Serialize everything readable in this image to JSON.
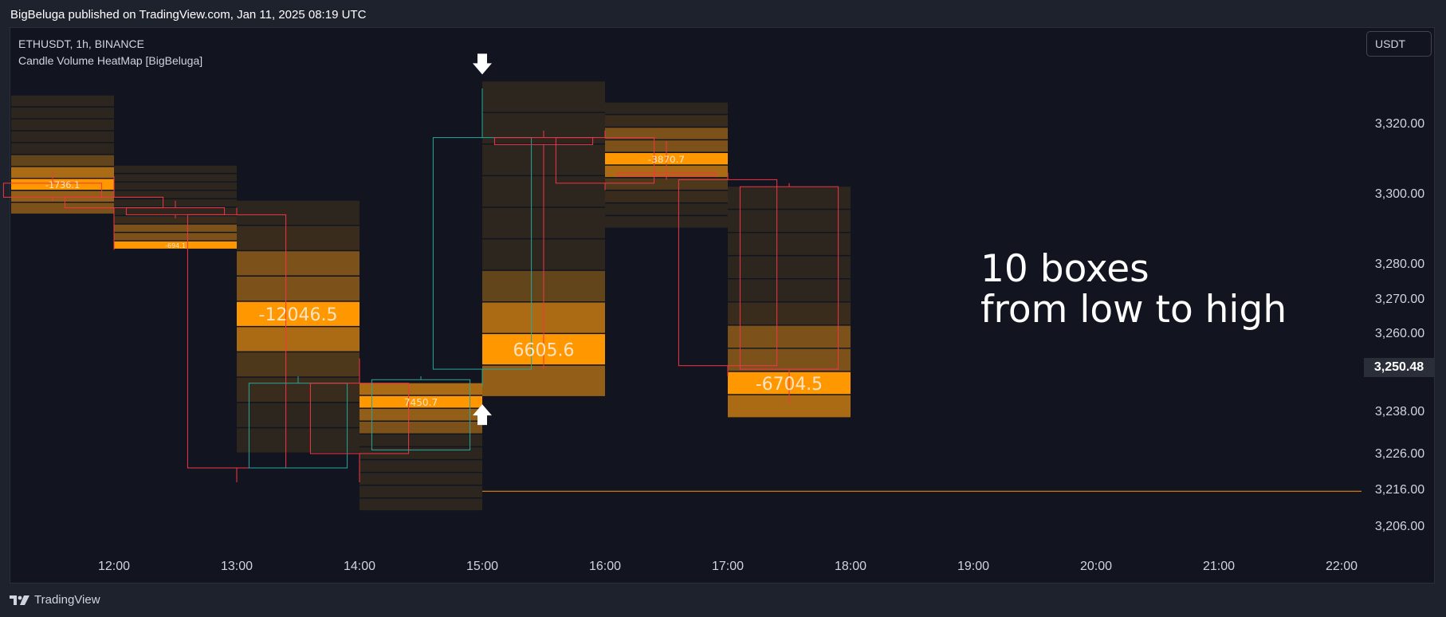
{
  "header": {
    "published": "BigBeluga published on TradingView.com, Jan 11, 2025 08:19 UTC"
  },
  "legend": {
    "symbol_line": "ETHUSDT, 1h, BINANCE",
    "indicator_line": "Candle Volume HeatMap [BigBeluga]"
  },
  "currency_button": "USDT",
  "annotation": {
    "line1": "10 boxes",
    "line2": "from low to high"
  },
  "footer": {
    "brand": "TradingView"
  },
  "colors": {
    "background": "#121520",
    "bear_candle": "#f23645",
    "bull_candle": "#26a69a",
    "heat_max": "#ff9800",
    "accent_line": "#ff9800"
  },
  "chart_data": {
    "type": "candlestick-heatmap",
    "x_ticks": [
      "12:00",
      "13:00",
      "14:00",
      "15:00",
      "16:00",
      "17:00",
      "18:00",
      "19:00",
      "20:00",
      "21:00",
      "22:00"
    ],
    "y_ticks": [
      3206,
      3216,
      3226,
      3238,
      3250.48,
      3260,
      3270,
      3280,
      3300,
      3320
    ],
    "y_tick_labels": [
      "3,206.00",
      "3,216.00",
      "3,226.00",
      "3,238.00",
      "3,250.48",
      "3,260.00",
      "3,270.00",
      "3,280.00",
      "3,300.00",
      "3,320.00"
    ],
    "current_price": 3250.48,
    "current_price_label": "3,250.48",
    "horizontal_level": 3215.5,
    "candles": [
      {
        "time": "11:30",
        "open": 3303,
        "close": 3299,
        "high": 3306,
        "low": 3298
      },
      {
        "time": "12:00",
        "open": 3299,
        "close": 3296,
        "high": 3305,
        "low": 3284
      },
      {
        "time": "12:30",
        "open": 3296,
        "close": 3294,
        "high": 3298,
        "low": 3293
      },
      {
        "time": "13:00",
        "open": 3294,
        "close": 3222,
        "high": 3296,
        "low": 3218
      },
      {
        "time": "13:30",
        "open": 3222,
        "close": 3246,
        "high": 3248,
        "low": 3222
      },
      {
        "time": "14:00",
        "open": 3246,
        "close": 3226,
        "high": 3253,
        "low": 3218
      },
      {
        "time": "14:30",
        "open": 3227,
        "close": 3247,
        "high": 3248,
        "low": 3227
      },
      {
        "time": "15:00",
        "open": 3250,
        "close": 3316,
        "high": 3330,
        "low": 3245
      },
      {
        "time": "15:30",
        "open": 3316,
        "close": 3314,
        "high": 3318,
        "low": 3250
      },
      {
        "time": "16:00",
        "open": 3316,
        "close": 3303,
        "high": 3318,
        "low": 3301
      },
      {
        "time": "16:30",
        "open": 3306,
        "close": 3305,
        "high": 3315,
        "low": 3304
      },
      {
        "time": "17:00",
        "open": 3304,
        "close": 3251,
        "high": 3306,
        "low": 3248
      },
      {
        "time": "17:30",
        "open": 3302,
        "close": 3250,
        "high": 3303,
        "low": 3240
      }
    ],
    "heatmaps": [
      {
        "hour": "11:00",
        "low": 3294,
        "high": 3328,
        "value_label": "-1736.1",
        "hot_index": 7
      },
      {
        "hour": "12:00",
        "low": 3284,
        "high": 3308,
        "value_label": "-694.1",
        "hot_index": 9
      },
      {
        "hour": "13:00",
        "low": 3226,
        "high": 3298,
        "value_label": "-12046.5",
        "hot_index": 4
      },
      {
        "hour": "14:00",
        "low": 3210,
        "high": 3246,
        "value_label": "7450.7",
        "hot_index": 1
      },
      {
        "hour": "15:00",
        "low": 3242,
        "high": 3332,
        "value_label": "6605.6",
        "hot_index": 8
      },
      {
        "hour": "16:00",
        "low": 3290,
        "high": 3326,
        "value_label": "-3870.7",
        "hot_index": 4
      },
      {
        "hour": "17:00",
        "low": 3236,
        "high": 3302,
        "value_label": "-6704.5",
        "hot_index": 8
      }
    ]
  }
}
